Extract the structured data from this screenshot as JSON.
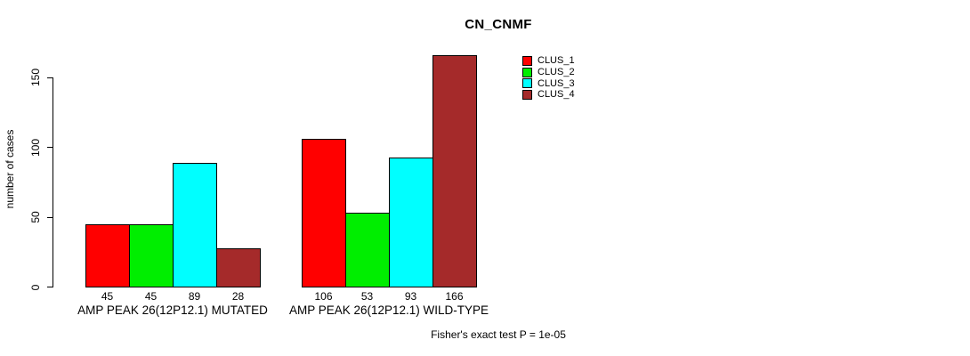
{
  "chart_data": {
    "type": "bar",
    "title": "CN_CNMF",
    "ylabel": "number of cases",
    "xlabel": "",
    "categories": [
      "AMP PEAK 26(12P12.1) MUTATED",
      "AMP PEAK 26(12P12.1) WILD-TYPE"
    ],
    "series": [
      {
        "name": "CLUS_1",
        "color": "#ff0000",
        "values": [
          45,
          106
        ]
      },
      {
        "name": "CLUS_2",
        "color": "#00ee00",
        "values": [
          45,
          53
        ]
      },
      {
        "name": "CLUS_3",
        "color": "#00ffff",
        "values": [
          89,
          93
        ]
      },
      {
        "name": "CLUS_4",
        "color": "#a52a2a",
        "values": [
          28,
          166
        ]
      }
    ],
    "yticks": [
      0,
      50,
      100,
      150
    ],
    "ylim": [
      0,
      170
    ],
    "grid": false,
    "legend_position": "top-right-inside",
    "bar_value_labels_shown": true,
    "annotation": "Fisher's exact test P = 1e-05"
  }
}
